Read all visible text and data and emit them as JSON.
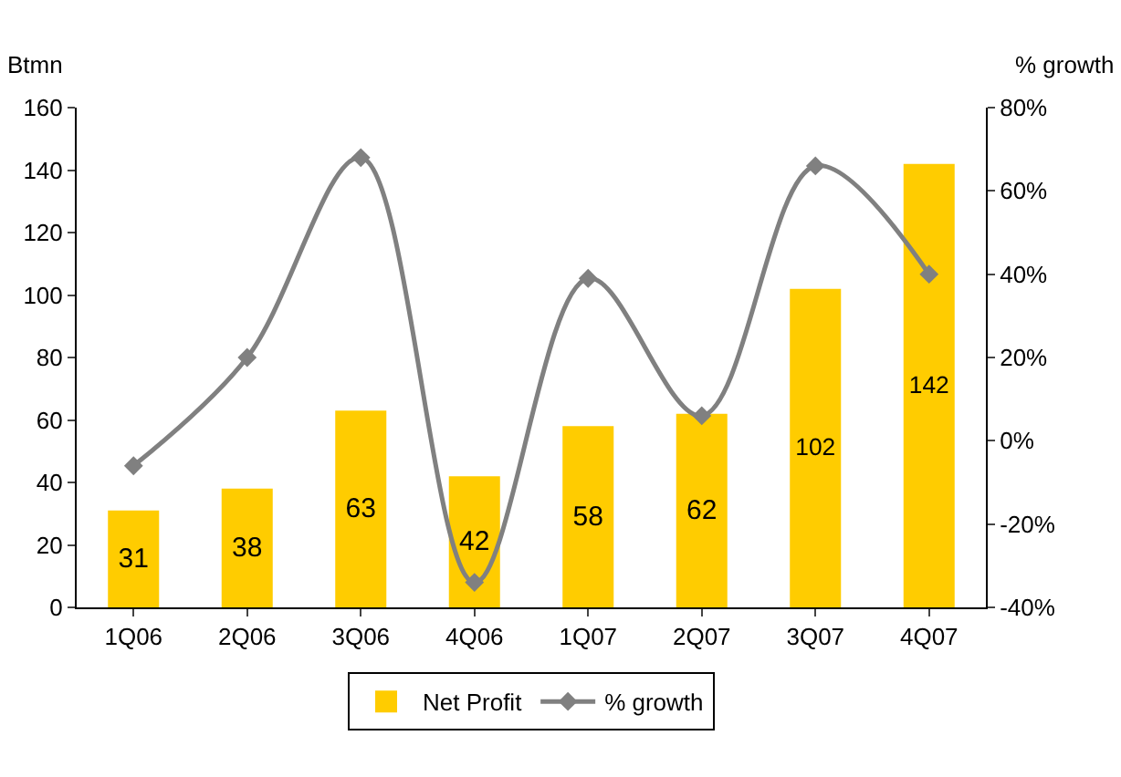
{
  "chart_data": {
    "type": "bar",
    "categories": [
      "1Q06",
      "2Q06",
      "3Q06",
      "4Q06",
      "1Q07",
      "2Q07",
      "3Q07",
      "4Q07"
    ],
    "series": [
      {
        "name": "Net Profit",
        "color": "#ffcc00",
        "values": [
          31,
          38,
          63,
          42,
          58,
          62,
          102,
          142
        ],
        "value_labels": [
          "31",
          "38",
          "63",
          "42",
          "58",
          "62",
          "102",
          "142"
        ]
      },
      {
        "name": "% growth",
        "type": "line",
        "axis": "y2",
        "color": "#808080",
        "values": [
          -6,
          20,
          68,
          -34,
          39,
          6,
          66,
          40
        ]
      }
    ],
    "ylabel": "Btmn",
    "y2label": "% growth",
    "ylim": [
      0,
      160
    ],
    "yticks": [
      0,
      20,
      40,
      60,
      80,
      100,
      120,
      140,
      160
    ],
    "y2lim": [
      -40,
      80
    ],
    "y2ticks": [
      {
        "value": -40,
        "label": "-40%"
      },
      {
        "value": -20,
        "label": "-20%"
      },
      {
        "value": 0,
        "label": "0%"
      },
      {
        "value": 20,
        "label": "20%"
      },
      {
        "value": 40,
        "label": "40%"
      },
      {
        "value": 60,
        "label": "60%"
      },
      {
        "value": 80,
        "label": "80%"
      }
    ],
    "grid": false,
    "legend": "bottom",
    "marker": "diamond",
    "line_style": "solid"
  }
}
